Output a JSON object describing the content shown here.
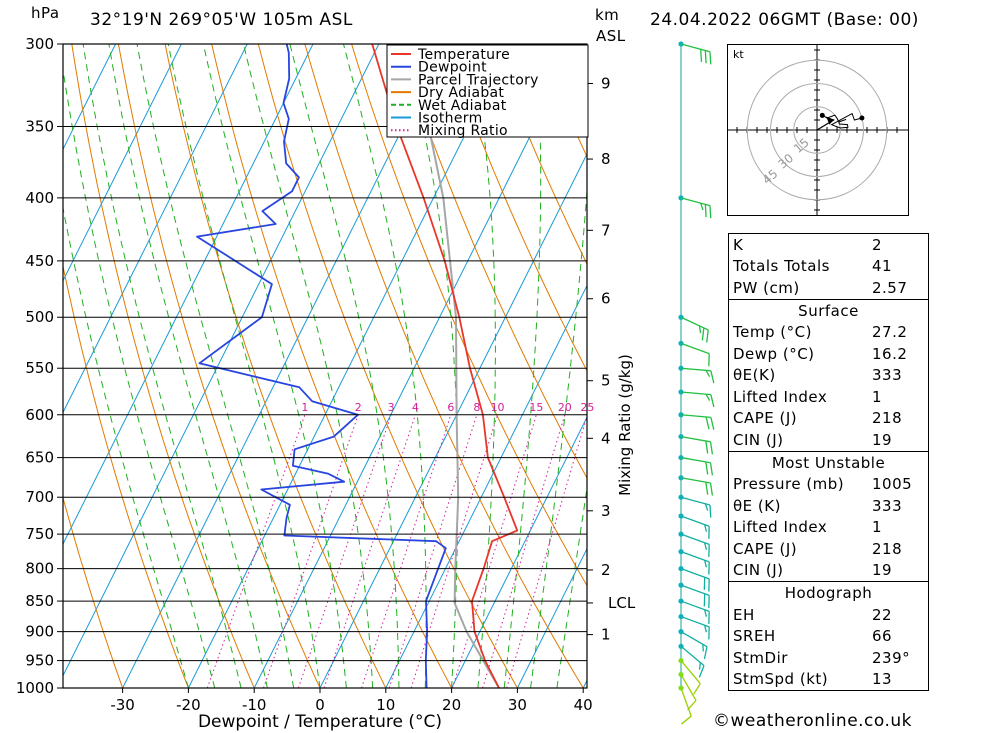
{
  "header": {
    "pressure_unit": "hPa",
    "location": "32°19'N 269°05'W 105m ASL",
    "km_label": "km",
    "asl_label": "ASL",
    "date": "24.04.2022 06GMT (Base: 00)"
  },
  "chart_data": {
    "type": "skew-t",
    "xlabel": "Dewpoint / Temperature (°C)",
    "ylabel_right": "Mixing Ratio (g/kg)",
    "pressure_ticks": [
      300,
      350,
      400,
      450,
      500,
      550,
      600,
      650,
      700,
      750,
      800,
      850,
      900,
      950,
      1000
    ],
    "temperature_ticks": [
      -30,
      -20,
      -10,
      0,
      10,
      20,
      30,
      40
    ],
    "km_ticks": [
      {
        "label": "9",
        "p": 323
      },
      {
        "label": "8",
        "p": 372
      },
      {
        "label": "7",
        "p": 425
      },
      {
        "label": "6",
        "p": 483
      },
      {
        "label": "5",
        "p": 563
      },
      {
        "label": "4",
        "p": 627
      },
      {
        "label": "3",
        "p": 718
      },
      {
        "label": "2",
        "p": 802
      },
      {
        "label": "LCL",
        "p": 853
      },
      {
        "label": "1",
        "p": 905
      }
    ],
    "mixing_ratio_labels": [
      "1",
      "2",
      "3",
      "4",
      "6",
      "8",
      "10",
      "15",
      "20",
      "25"
    ],
    "mixing_ratio_values": [
      1,
      2,
      3,
      4,
      6,
      8,
      10,
      15,
      20,
      25
    ],
    "legend": [
      {
        "label": "Temperature",
        "color": "#e8362a"
      },
      {
        "label": "Dewpoint",
        "color": "#2845e0"
      },
      {
        "label": "Parcel Trajectory",
        "color": "#a6a6a6"
      },
      {
        "label": "Dry Adiabat",
        "color": "#e07a00"
      },
      {
        "label": "Wet Adiabat",
        "color": "#20b020"
      },
      {
        "label": "Isotherm",
        "color": "#1a9ad8"
      },
      {
        "label": "Mixing Ratio",
        "color": "#d0209a"
      }
    ],
    "temperature_profile": [
      {
        "p": 1000,
        "t": 27.2
      },
      {
        "p": 950,
        "t": 23.0
      },
      {
        "p": 900,
        "t": 19.2
      },
      {
        "p": 850,
        "t": 16.5
      },
      {
        "p": 800,
        "t": 15.8
      },
      {
        "p": 760,
        "t": 15.0
      },
      {
        "p": 745,
        "t": 18.0
      },
      {
        "p": 700,
        "t": 13.5
      },
      {
        "p": 650,
        "t": 8.0
      },
      {
        "p": 600,
        "t": 4.0
      },
      {
        "p": 550,
        "t": -1.5
      },
      {
        "p": 500,
        "t": -7.0
      },
      {
        "p": 450,
        "t": -13.5
      },
      {
        "p": 400,
        "t": -21.5
      },
      {
        "p": 350,
        "t": -31.0
      },
      {
        "p": 300,
        "t": -41.0
      }
    ],
    "dewpoint_profile": [
      {
        "p": 1000,
        "t": 16.2
      },
      {
        "p": 950,
        "t": 14.0
      },
      {
        "p": 900,
        "t": 12.0
      },
      {
        "p": 850,
        "t": 9.5
      },
      {
        "p": 810,
        "t": 9.0
      },
      {
        "p": 770,
        "t": 8.5
      },
      {
        "p": 760,
        "t": 6.5
      },
      {
        "p": 752,
        "t": -17.0
      },
      {
        "p": 728,
        "t": -18.0
      },
      {
        "p": 710,
        "t": -18.5
      },
      {
        "p": 690,
        "t": -24.0
      },
      {
        "p": 680,
        "t": -12.0
      },
      {
        "p": 670,
        "t": -15.0
      },
      {
        "p": 660,
        "t": -21.0
      },
      {
        "p": 640,
        "t": -22.0
      },
      {
        "p": 625,
        "t": -17.0
      },
      {
        "p": 600,
        "t": -15.0
      },
      {
        "p": 585,
        "t": -23.0
      },
      {
        "p": 570,
        "t": -26.0
      },
      {
        "p": 545,
        "t": -43.0
      },
      {
        "p": 500,
        "t": -37.0
      },
      {
        "p": 470,
        "t": -38.0
      },
      {
        "p": 430,
        "t": -53.0
      },
      {
        "p": 420,
        "t": -42.0
      },
      {
        "p": 410,
        "t": -45.0
      },
      {
        "p": 395,
        "t": -42.0
      },
      {
        "p": 385,
        "t": -42.0
      },
      {
        "p": 375,
        "t": -45.0
      },
      {
        "p": 360,
        "t": -47.0
      },
      {
        "p": 345,
        "t": -48.0
      },
      {
        "p": 335,
        "t": -50.0
      },
      {
        "p": 320,
        "t": -51.0
      },
      {
        "p": 305,
        "t": -53.0
      },
      {
        "p": 300,
        "t": -54.0
      }
    ],
    "parcel_profile": [
      {
        "p": 1000,
        "t": 27.2
      },
      {
        "p": 900,
        "t": 18.0
      },
      {
        "p": 853,
        "t": 14.0
      },
      {
        "p": 800,
        "t": 11.5
      },
      {
        "p": 700,
        "t": 6.5
      },
      {
        "p": 600,
        "t": 0.0
      },
      {
        "p": 500,
        "t": -7.5
      },
      {
        "p": 400,
        "t": -18.5
      },
      {
        "p": 300,
        "t": -35.0
      }
    ],
    "wind_barbs": [
      {
        "p": 1000,
        "dir": 200,
        "kt": 10
      },
      {
        "p": 975,
        "dir": 210,
        "kt": 10
      },
      {
        "p": 950,
        "dir": 220,
        "kt": 10
      },
      {
        "p": 925,
        "dir": 230,
        "kt": 15
      },
      {
        "p": 900,
        "dir": 240,
        "kt": 15
      },
      {
        "p": 875,
        "dir": 250,
        "kt": 15
      },
      {
        "p": 850,
        "dir": 250,
        "kt": 15
      },
      {
        "p": 825,
        "dir": 250,
        "kt": 20
      },
      {
        "p": 800,
        "dir": 250,
        "kt": 20
      },
      {
        "p": 775,
        "dir": 250,
        "kt": 15
      },
      {
        "p": 750,
        "dir": 250,
        "kt": 15
      },
      {
        "p": 725,
        "dir": 250,
        "kt": 15
      },
      {
        "p": 700,
        "dir": 255,
        "kt": 15
      },
      {
        "p": 675,
        "dir": 260,
        "kt": 20
      },
      {
        "p": 650,
        "dir": 260,
        "kt": 20
      },
      {
        "p": 625,
        "dir": 260,
        "kt": 20
      },
      {
        "p": 600,
        "dir": 265,
        "kt": 20
      },
      {
        "p": 575,
        "dir": 265,
        "kt": 15
      },
      {
        "p": 550,
        "dir": 265,
        "kt": 15
      },
      {
        "p": 525,
        "dir": 250,
        "kt": 10
      },
      {
        "p": 500,
        "dir": 245,
        "kt": 25
      },
      {
        "p": 400,
        "dir": 255,
        "kt": 25
      },
      {
        "p": 300,
        "dir": 255,
        "kt": 30
      }
    ],
    "hodograph": {
      "unit_label": "kt",
      "ring_labels": [
        "15",
        "30",
        "45"
      ],
      "ring_values": [
        15,
        30,
        45
      ]
    }
  },
  "indices": {
    "rows": [
      {
        "label": "K",
        "value": "2"
      },
      {
        "label": "Totals Totals",
        "value": "41"
      },
      {
        "label": "PW (cm)",
        "value": "2.57"
      }
    ],
    "surface": {
      "title": "Surface",
      "rows": [
        {
          "label": "Temp (°C)",
          "value": "27.2"
        },
        {
          "label": "Dewp (°C)",
          "value": "16.2"
        },
        {
          "label": "θE(K)",
          "value": "333"
        },
        {
          "label": "Lifted Index",
          "value": "1"
        },
        {
          "label": "CAPE (J)",
          "value": "218"
        },
        {
          "label": "CIN (J)",
          "value": "19"
        }
      ]
    },
    "most_unstable": {
      "title": "Most Unstable",
      "rows": [
        {
          "label": "Pressure (mb)",
          "value": "1005"
        },
        {
          "label": "θE (K)",
          "value": "333"
        },
        {
          "label": "Lifted Index",
          "value": "1"
        },
        {
          "label": "CAPE (J)",
          "value": "218"
        },
        {
          "label": "CIN (J)",
          "value": "19"
        }
      ]
    },
    "hodograph_block": {
      "title": "Hodograph",
      "rows": [
        {
          "label": "EH",
          "value": "22"
        },
        {
          "label": "SREH",
          "value": "66"
        },
        {
          "label": "StmDir",
          "value": "239°"
        },
        {
          "label": "StmSpd (kt)",
          "value": "13"
        }
      ]
    }
  },
  "footer": {
    "copyright": "©weatheronline.co.uk"
  }
}
